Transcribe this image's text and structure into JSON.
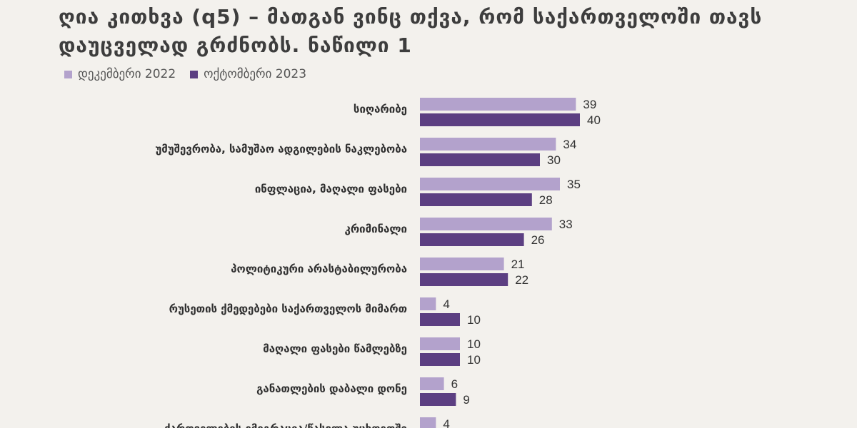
{
  "chart_data": {
    "type": "bar",
    "title_line1": "ღია კითხვა (q5) – მათგან ვინც თქვა, რომ საქართველოში თავს",
    "title_line2": "დაუცველად გრძნობს. ნაწილი 1",
    "categories": [
      "სიღარიბე",
      "უმუშევრობა, სამუშაო ადგილების ნაკლებობა",
      "ინფლაცია, მაღალი ფასები",
      "კრიმინალი",
      "პოლიტიკური არასტაბილურობა",
      "რუსეთის ქმედებები საქართველოს მიმართ",
      "მაღალი ფასები წამლებზე",
      "განათლების დაბალი დონე",
      "ქართველების ემიგრაცია/წასვლა უცხოეთში"
    ],
    "series": [
      {
        "name": "დეკემბერი 2022",
        "color": "#b3a2cc",
        "values": [
          39,
          34,
          35,
          33,
          21,
          4,
          10,
          6,
          4
        ]
      },
      {
        "name": "ოქტომბერი 2023",
        "color": "#5c3f82",
        "values": [
          40,
          30,
          28,
          26,
          22,
          10,
          10,
          9,
          null
        ]
      }
    ],
    "xlim": [
      0,
      45
    ],
    "legend_position": "top-left",
    "grid": false
  }
}
